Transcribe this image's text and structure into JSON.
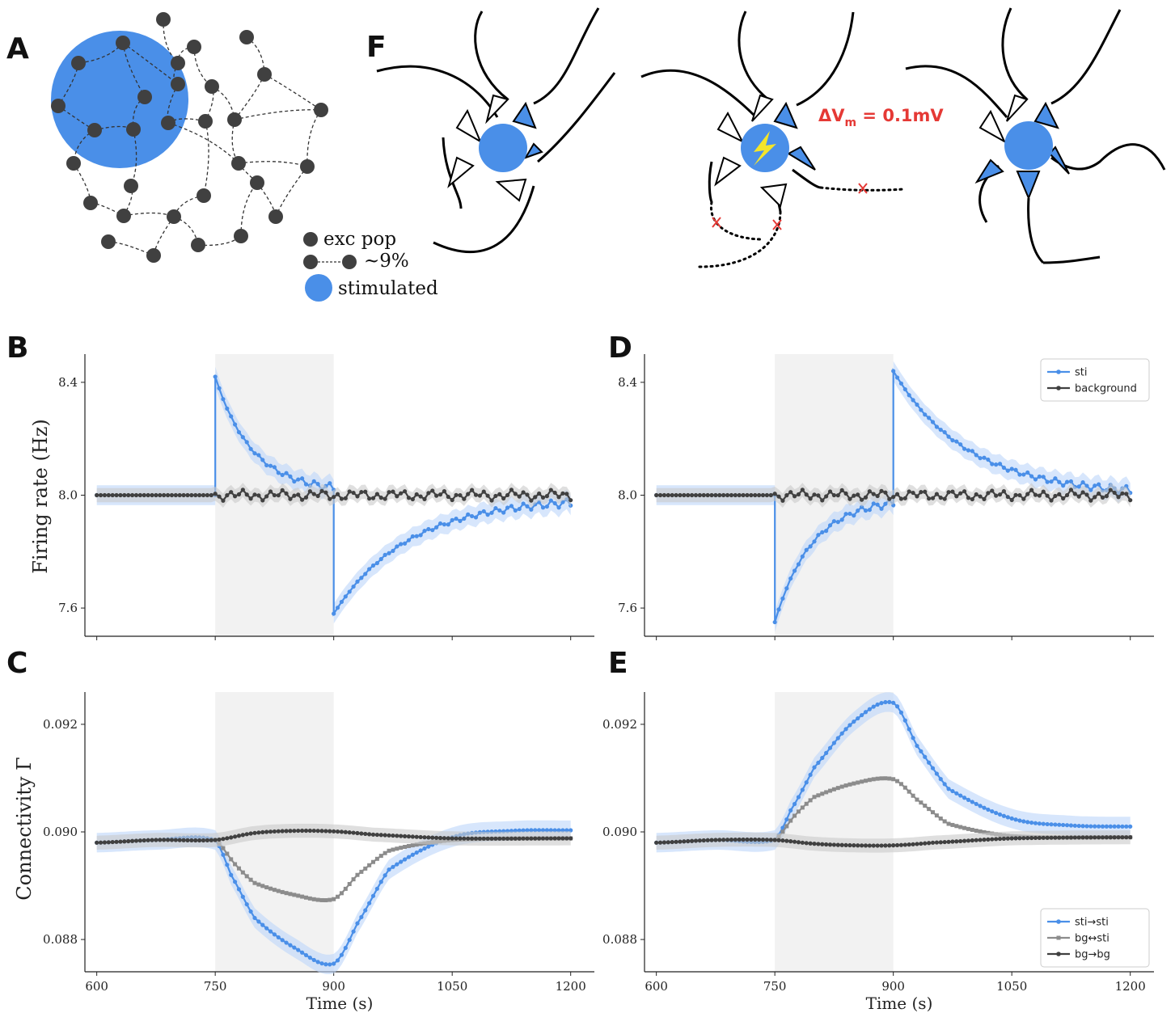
{
  "colors": {
    "blue": "#4a8fe8",
    "blue_band": "#bcd5fa",
    "dark": "#404040",
    "grey_band": "#c9c9c9",
    "gray": "#8c8c8c",
    "shade": "#f2f2f2",
    "red": "#e53935",
    "bolt": "#f4e52a"
  },
  "labels": {
    "A": "A",
    "B": "B",
    "C": "C",
    "D": "D",
    "E": "E",
    "F": "F"
  },
  "panelA_legend": {
    "exc": "exc pop",
    "conn": "~9%",
    "stim": "stimulated"
  },
  "panelF": {
    "dv_main": "ΔV",
    "dv_sub": "m",
    "dv_rest": " = 0.1mV"
  },
  "axes_text": {
    "firing_ylabel": "Firing rate (Hz)",
    "conn_ylabel": "Connectivity Γ",
    "xlabel": "Time (s)"
  },
  "chart_data": [
    {
      "panel": "B",
      "type": "line",
      "xlim": [
        585,
        1230
      ],
      "ylim": [
        7.5,
        8.5
      ],
      "xticks": [
        600,
        750,
        900,
        1050,
        1200
      ],
      "xtick_labels": [
        "600",
        "750",
        "900",
        "1050",
        "1200"
      ],
      "yticks": [
        7.6,
        8.0,
        8.4
      ],
      "ytick_labels": [
        "7.6",
        "8.0",
        "8.4"
      ],
      "ylabel": "Firing rate (Hz)",
      "stim_window": [
        750,
        900
      ],
      "series": [
        {
          "name": "sti",
          "color": "#4a8fe8",
          "segments": [
            {
              "x0": 600,
              "x1": 750,
              "kind": "flat",
              "y": 8.0
            },
            {
              "x0": 750,
              "x1": 900,
              "kind": "decay",
              "y0": 8.42,
              "y1": 8.01
            },
            {
              "x0": 900,
              "x1": 1200,
              "kind": "decay",
              "y0": 7.58,
              "y1": 7.99
            }
          ]
        },
        {
          "name": "background",
          "color": "#404040",
          "segments": [
            {
              "x0": 600,
              "x1": 1200,
              "kind": "flat",
              "y": 8.0
            }
          ]
        }
      ]
    },
    {
      "panel": "C",
      "type": "line",
      "xlim": [
        585,
        1230
      ],
      "ylim": [
        0.0874,
        0.0926
      ],
      "xticks": [
        600,
        750,
        900,
        1050,
        1200
      ],
      "xtick_labels": [
        "600",
        "750",
        "900",
        "1050",
        "1200"
      ],
      "yticks": [
        0.088,
        0.09,
        0.092
      ],
      "ytick_labels": [
        "0.088",
        "0.090",
        "0.092"
      ],
      "ylabel": "Connectivity Γ",
      "xlabel": "Time (s)",
      "stim_window": [
        750,
        900
      ],
      "series": [
        {
          "name": "sti→sti",
          "color": "#4a8fe8",
          "points": [
            [
              600,
              0.0898
            ],
            [
              675,
              0.08985
            ],
            [
              750,
              0.08985
            ],
            [
              770,
              0.0892
            ],
            [
              800,
              0.0884
            ],
            [
              850,
              0.08785
            ],
            [
              900,
              0.08755
            ],
            [
              930,
              0.0883
            ],
            [
              970,
              0.0893
            ],
            [
              1050,
              0.0899
            ],
            [
              1125,
              0.09002
            ],
            [
              1200,
              0.09003
            ]
          ]
        },
        {
          "name": "bg↔sti",
          "color": "#8c8c8c",
          "points": [
            [
              750,
              0.08985
            ],
            [
              775,
              0.0894
            ],
            [
              800,
              0.08905
            ],
            [
              850,
              0.08883
            ],
            [
              900,
              0.08875
            ],
            [
              930,
              0.0892
            ],
            [
              970,
              0.08965
            ],
            [
              1050,
              0.08985
            ],
            [
              1200,
              0.08988
            ]
          ]
        },
        {
          "name": "bg→bg",
          "color": "#404040",
          "points": [
            [
              600,
              0.0898
            ],
            [
              675,
              0.08985
            ],
            [
              750,
              0.08985
            ],
            [
              800,
              0.08998
            ],
            [
              850,
              0.09002
            ],
            [
              900,
              0.09001
            ],
            [
              950,
              0.08995
            ],
            [
              1050,
              0.08988
            ],
            [
              1200,
              0.08988
            ]
          ]
        }
      ]
    },
    {
      "panel": "D",
      "type": "line",
      "xlim": [
        585,
        1230
      ],
      "ylim": [
        7.5,
        8.5
      ],
      "xticks": [
        600,
        750,
        900,
        1050,
        1200
      ],
      "xtick_labels": [
        "600",
        "750",
        "900",
        "1050",
        "1200"
      ],
      "yticks": [
        7.6,
        8.0,
        8.4
      ],
      "ytick_labels": [
        "7.6",
        "8.0",
        "8.4"
      ],
      "stim_window": [
        750,
        900
      ],
      "legend": [
        "sti",
        "background"
      ],
      "series": [
        {
          "name": "sti",
          "color": "#4a8fe8",
          "segments": [
            {
              "x0": 600,
              "x1": 750,
              "kind": "flat",
              "y": 8.0
            },
            {
              "x0": 750,
              "x1": 900,
              "kind": "decay",
              "y0": 7.55,
              "y1": 7.99
            },
            {
              "x0": 900,
              "x1": 1200,
              "kind": "decay",
              "y0": 8.44,
              "y1": 8.0
            }
          ]
        },
        {
          "name": "background",
          "color": "#404040",
          "segments": [
            {
              "x0": 600,
              "x1": 1200,
              "kind": "flat",
              "y": 8.0
            }
          ]
        }
      ]
    },
    {
      "panel": "E",
      "type": "line",
      "xlim": [
        585,
        1230
      ],
      "ylim": [
        0.0874,
        0.0926
      ],
      "xticks": [
        600,
        750,
        900,
        1050,
        1200
      ],
      "xtick_labels": [
        "600",
        "750",
        "900",
        "1050",
        "1200"
      ],
      "yticks": [
        0.088,
        0.09,
        0.092
      ],
      "ytick_labels": [
        "0.088",
        "0.090",
        "0.092"
      ],
      "xlabel": "Time (s)",
      "stim_window": [
        750,
        900
      ],
      "legend": [
        "sti→sti",
        "bg↔sti",
        "bg→bg"
      ],
      "series": [
        {
          "name": "sti→sti",
          "color": "#4a8fe8",
          "points": [
            [
              600,
              0.0898
            ],
            [
              675,
              0.08985
            ],
            [
              750,
              0.08985
            ],
            [
              770,
              0.0904
            ],
            [
              800,
              0.0912
            ],
            [
              850,
              0.09205
            ],
            [
              900,
              0.0924
            ],
            [
              930,
              0.0916
            ],
            [
              970,
              0.0908
            ],
            [
              1050,
              0.09025
            ],
            [
              1125,
              0.09012
            ],
            [
              1200,
              0.0901
            ]
          ]
        },
        {
          "name": "bg↔sti",
          "color": "#8c8c8c",
          "points": [
            [
              750,
              0.08985
            ],
            [
              775,
              0.0903
            ],
            [
              800,
              0.09065
            ],
            [
              850,
              0.0909
            ],
            [
              900,
              0.09098
            ],
            [
              930,
              0.0906
            ],
            [
              970,
              0.09015
            ],
            [
              1050,
              0.08992
            ],
            [
              1200,
              0.0899
            ]
          ]
        },
        {
          "name": "bg→bg",
          "color": "#404040",
          "points": [
            [
              600,
              0.0898
            ],
            [
              675,
              0.08985
            ],
            [
              750,
              0.08985
            ],
            [
              800,
              0.08978
            ],
            [
              850,
              0.08975
            ],
            [
              900,
              0.08975
            ],
            [
              950,
              0.0898
            ],
            [
              1050,
              0.08988
            ],
            [
              1200,
              0.0899
            ]
          ]
        }
      ]
    }
  ]
}
